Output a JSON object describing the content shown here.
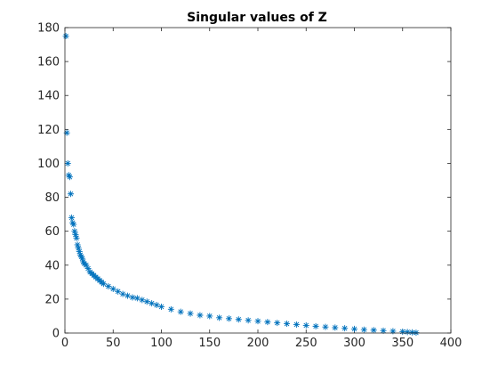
{
  "chart_data": {
    "type": "scatter",
    "title": "Singular values of Z",
    "xlabel": "",
    "ylabel": "",
    "xlim": [
      0,
      400
    ],
    "ylim": [
      0,
      180
    ],
    "xticks": [
      0,
      50,
      100,
      150,
      200,
      250,
      300,
      350,
      400
    ],
    "yticks": [
      0,
      20,
      40,
      60,
      80,
      100,
      120,
      140,
      160,
      180
    ],
    "grid": false,
    "marker": "*",
    "color": "#0072BD",
    "series": [
      {
        "x": [
          1,
          2,
          3,
          4,
          5,
          6,
          7,
          8,
          9,
          10,
          11,
          12,
          13,
          14,
          15,
          16,
          17,
          18,
          19,
          20,
          22,
          24,
          26,
          28,
          30,
          32,
          34,
          36,
          38,
          40,
          45,
          50,
          55,
          60,
          65,
          70,
          75,
          80,
          85,
          90,
          95,
          100,
          110,
          120,
          130,
          140,
          150,
          160,
          170,
          180,
          190,
          200,
          210,
          220,
          230,
          240,
          250,
          260,
          270,
          280,
          290,
          300,
          310,
          320,
          330,
          340,
          350,
          355,
          360,
          364
        ],
        "y": [
          175,
          118,
          100,
          93,
          92,
          82,
          68,
          65,
          64,
          60,
          58,
          56,
          52,
          50,
          48,
          46,
          45,
          44,
          42,
          41,
          40,
          38,
          36,
          35,
          34,
          33,
          32,
          31,
          30,
          29,
          27.5,
          26,
          24.5,
          23,
          22,
          21,
          20.5,
          19.5,
          18.5,
          17.5,
          16.5,
          15.5,
          14,
          12.5,
          11.5,
          10.5,
          10,
          9,
          8.5,
          8,
          7.5,
          7,
          6.5,
          6,
          5.5,
          5,
          4.5,
          4,
          3.6,
          3.2,
          2.8,
          2.4,
          2,
          1.7,
          1.4,
          1.1,
          0.8,
          0.6,
          0.4,
          0.2
        ]
      }
    ]
  }
}
